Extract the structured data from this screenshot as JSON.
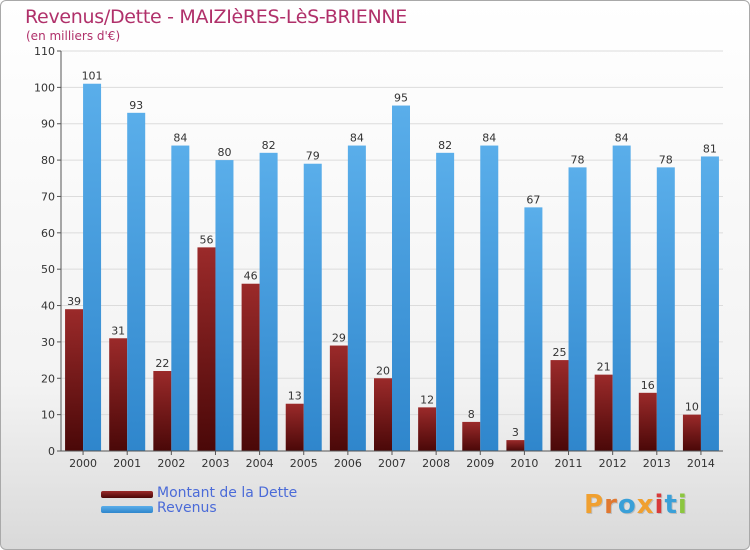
{
  "header": {
    "title": "Revenus/Dette - MAIZIèRES-LèS-BRIENNE",
    "subtitle": "(en milliers d'€)"
  },
  "legend": {
    "items": [
      {
        "label": "Montant de la Dette",
        "color": "#7a1a1a"
      },
      {
        "label": "Revenus",
        "color": "#4a9ee0"
      }
    ]
  },
  "brand": {
    "text": "Proxiti",
    "colors": [
      "#f0a030",
      "#e07830",
      "#3aa0d8",
      "#f0a030",
      "#d83a3a",
      "#3aa0d8",
      "#8cc63f"
    ]
  },
  "chart_data": {
    "type": "bar",
    "title": "Revenus/Dette - MAIZIèRES-LèS-BRIENNE",
    "subtitle": "(en milliers d'€)",
    "xlabel": "",
    "ylabel": "",
    "categories": [
      "2000",
      "2001",
      "2002",
      "2003",
      "2004",
      "2005",
      "2006",
      "2007",
      "2008",
      "2009",
      "2010",
      "2011",
      "2012",
      "2013",
      "2014"
    ],
    "series": [
      {
        "name": "Montant de la Dette",
        "values": [
          39,
          31,
          22,
          56,
          46,
          13,
          29,
          20,
          12,
          8,
          3,
          25,
          21,
          16,
          10
        ],
        "color": "#7a1a1a"
      },
      {
        "name": "Revenus",
        "values": [
          101,
          93,
          84,
          80,
          82,
          79,
          84,
          95,
          82,
          84,
          67,
          78,
          84,
          78,
          81
        ],
        "color": "#4a9ee0"
      }
    ],
    "ylim": [
      0,
      110
    ],
    "yticks": [
      0,
      10,
      20,
      30,
      40,
      50,
      60,
      70,
      80,
      90,
      100,
      110
    ],
    "grid": true,
    "legend_position": "bottom-left"
  }
}
